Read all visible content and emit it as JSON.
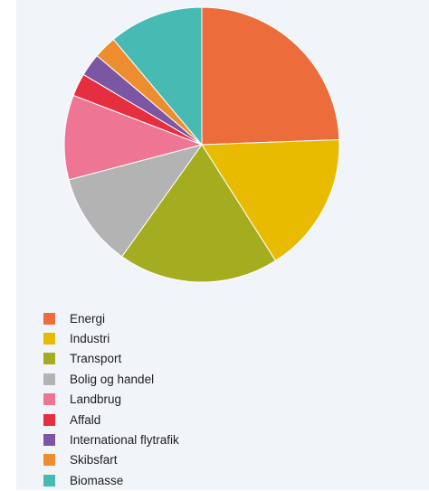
{
  "chart_data": {
    "type": "pie",
    "title": "",
    "slices": [
      {
        "label": "Energi",
        "value": 25.5,
        "color": "#ec6c3b"
      },
      {
        "label": "Industri",
        "value": 17.3,
        "color": "#e8bb00"
      },
      {
        "label": "Transport",
        "value": 19.7,
        "color": "#a3ad1f"
      },
      {
        "label": "Bolig og handel",
        "value": 11.5,
        "color": "#b3b3b3"
      },
      {
        "label": "Landbrug",
        "value": 10.4,
        "color": "#ef7594"
      },
      {
        "label": "Affald",
        "value": 2.8,
        "color": "#e52f40"
      },
      {
        "label": "International flytrafik",
        "value": 2.8,
        "color": "#7a56a3"
      },
      {
        "label": "Skibsfart",
        "value": 2.8,
        "color": "#ee8d2f"
      },
      {
        "label": "Biomasse",
        "value": 11.6,
        "color": "#46bab3"
      }
    ],
    "legend_position": "bottom-left"
  }
}
